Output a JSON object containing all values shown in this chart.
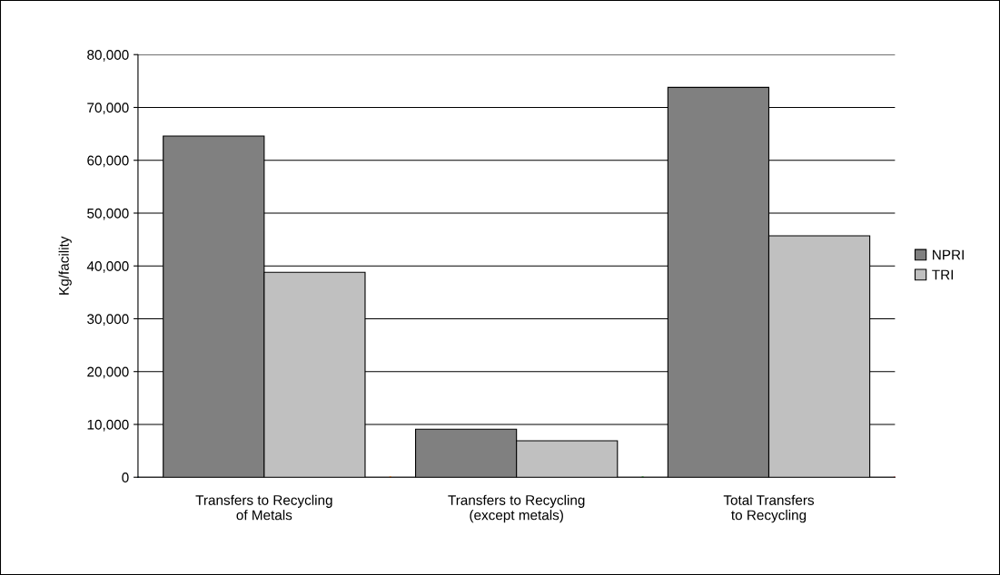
{
  "chart_data": {
    "type": "bar",
    "ylabel": "Kg/facility",
    "categories": [
      "Transfers to Recycling\nof Metals",
      "Transfers to Recycling\n(except metals)",
      "Total Transfers\nto Recycling"
    ],
    "series": [
      {
        "name": "NPRI",
        "color": "#808080",
        "values": [
          64600,
          9100,
          73800
        ]
      },
      {
        "name": "TRI",
        "color": "#c0c0c0",
        "values": [
          38800,
          6900,
          45700
        ]
      }
    ],
    "ylim": [
      0,
      80000
    ],
    "yticks": [
      {
        "value": 0,
        "label": "0"
      },
      {
        "value": 10000,
        "label": "10,000"
      },
      {
        "value": 20000,
        "label": "20,000"
      },
      {
        "value": 30000,
        "label": "30,000"
      },
      {
        "value": 40000,
        "label": "40,000"
      },
      {
        "value": 50000,
        "label": "50,000"
      },
      {
        "value": 60000,
        "label": "60,000"
      },
      {
        "value": 70000,
        "label": "70,000"
      },
      {
        "value": 80000,
        "label": "80,000"
      }
    ],
    "grid": "y",
    "legend": "right"
  }
}
